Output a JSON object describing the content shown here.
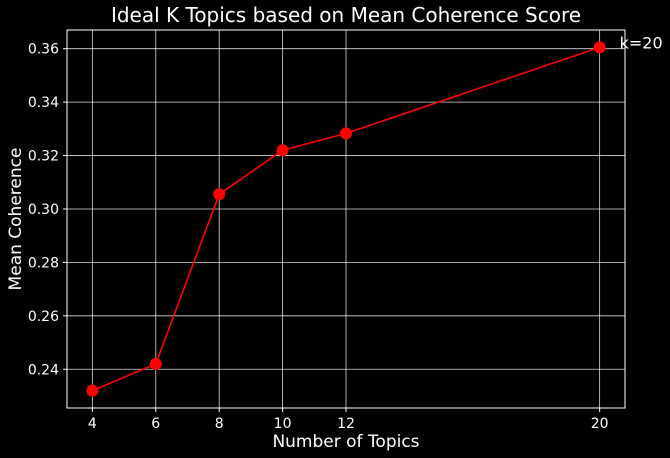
{
  "chart_data": {
    "type": "line",
    "title": "Ideal K Topics based on Mean Coherence Score",
    "xlabel": "Number of Topics",
    "ylabel": "Mean Coherence",
    "x": [
      4,
      6,
      8,
      10,
      12,
      20
    ],
    "series": [
      {
        "values": [
          0.232,
          0.242,
          0.3055,
          0.322,
          0.3283,
          0.3605
        ]
      }
    ],
    "xticks": [
      "4",
      "6",
      "8",
      "10",
      "12",
      "20"
    ],
    "yticks": [
      "0.24",
      "0.26",
      "0.28",
      "0.30",
      "0.32",
      "0.34",
      "0.36"
    ],
    "ytick_values": [
      0.24,
      0.26,
      0.28,
      0.3,
      0.32,
      0.34,
      0.36
    ],
    "xlim": [
      3.2,
      20.8
    ],
    "ylim": [
      0.2255,
      0.367
    ],
    "grid": true,
    "annotation": {
      "text": "k=20",
      "x": 20,
      "y": 0.3605
    },
    "colors": {
      "background": "#000000",
      "line": "#ff0000",
      "marker": "#ff0000",
      "grid": "#ffffff",
      "text": "#ffffff"
    }
  }
}
